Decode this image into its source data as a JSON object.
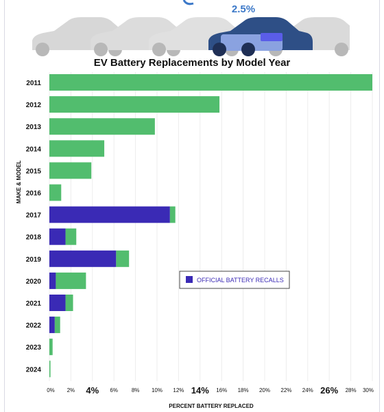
{
  "highlight_value": "2.5%",
  "colors": {
    "replacement": "#52bd6e",
    "recall": "#3a2ab5",
    "car_body": "#d7d7d7",
    "car_highlight": "#2e4f86"
  },
  "chart_data": {
    "type": "bar",
    "orientation": "horizontal",
    "stacked": true,
    "title": "EV Battery Replacements by Model Year",
    "xlabel": "PERCENT BATTERY REPLACED",
    "ylabel": "MAKE & MODEL",
    "categories": [
      "2011",
      "2012",
      "2013",
      "2014",
      "2015",
      "2016",
      "2017",
      "2018",
      "2019",
      "2020",
      "2021",
      "2022",
      "2023",
      "2024"
    ],
    "series": [
      {
        "name": "OFFICIAL BATTERY RECALLS",
        "values": [
          0,
          0,
          0,
          0,
          0,
          0,
          11.2,
          1.5,
          6.2,
          0.6,
          1.5,
          0.5,
          0,
          0
        ]
      },
      {
        "values": [
          30,
          15.8,
          9.8,
          5.1,
          3.9,
          1.1,
          0.5,
          1.0,
          1.2,
          2.8,
          0.7,
          0.5,
          0.3,
          0.1
        ]
      }
    ],
    "xlim": [
      0,
      30
    ],
    "x_ticks": [
      "0%",
      "2%",
      "4%",
      "6%",
      "8%",
      "10%",
      "12%",
      "14%",
      "16%",
      "18%",
      "20%",
      "22%",
      "24%",
      "26%",
      "28%",
      "30%"
    ],
    "emphasized_ticks": [
      "4%",
      "14%",
      "26%"
    ],
    "grid": true,
    "legend_position": "middle-right"
  }
}
